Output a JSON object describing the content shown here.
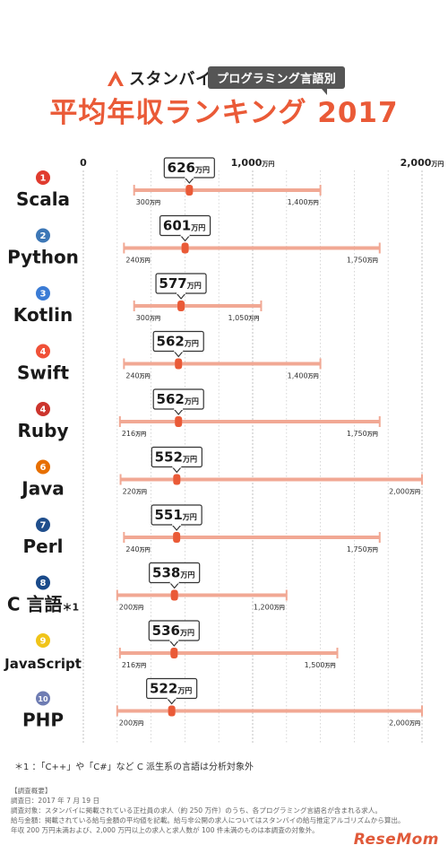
{
  "header": {
    "brand_name": "スタンバイ",
    "subtitle": "プログラミング言語別",
    "title": "平均年収ランキング 2017"
  },
  "colors": {
    "accent": "#ea5a37",
    "range": "#f1a894",
    "grid": "#cccccc"
  },
  "footnote": "＊1 ：「C++」や「C#」など C 派生系の言語は分析対象外",
  "survey": {
    "heading": "【調査概要】",
    "lines": [
      "調査日：2017 年 7 月 19 日",
      "調査対象：スタンバイに掲載されている正社員の求人（約 250 万件）のうち、各プログラミング言語名が含まれる求人。",
      "給与金額：掲載されている給与金額の平均値を記載。給与非公開の求人についてはスタンバイの給与推定アルゴリズムから算出。",
      "年収 200 万円未満および、2,000 万円以上の求人と求人数が 100 件未満のものは本調査の対象外。"
    ]
  },
  "watermark": "ReseMom",
  "chart_data": {
    "type": "range-dot",
    "unit": "万円",
    "axis": {
      "min": 0,
      "max": 2000,
      "ticks": [
        0,
        1000,
        2000
      ],
      "tick_labels": [
        "0",
        "1,000",
        "2,000"
      ],
      "tick_unit": "万円",
      "grid": true
    },
    "rows": [
      {
        "rank": "1",
        "name": "Scala",
        "avg": 626,
        "min": 300,
        "max": 1400,
        "min_label": "300",
        "max_label": "1,400",
        "rank_color": "#e03b2e"
      },
      {
        "rank": "2",
        "name": "Python",
        "avg": 601,
        "min": 240,
        "max": 1750,
        "min_label": "240",
        "max_label": "1,750",
        "rank_color": "#3d77b6"
      },
      {
        "rank": "3",
        "name": "Kotlin",
        "avg": 577,
        "min": 300,
        "max": 1050,
        "min_label": "300",
        "max_label": "1,050",
        "rank_color": "#3a7bd5"
      },
      {
        "rank": "4",
        "name": "Swift",
        "avg": 562,
        "min": 240,
        "max": 1400,
        "min_label": "240",
        "max_label": "1,400",
        "rank_color": "#f05138"
      },
      {
        "rank": "4",
        "name": "Ruby",
        "avg": 562,
        "min": 216,
        "max": 1750,
        "min_label": "216",
        "max_label": "1,750",
        "rank_color": "#cc342d"
      },
      {
        "rank": "6",
        "name": "Java",
        "avg": 552,
        "min": 220,
        "max": 2000,
        "min_label": "220",
        "max_label": "2,000",
        "rank_color": "#e76f00"
      },
      {
        "rank": "7",
        "name": "Perl",
        "avg": 551,
        "min": 240,
        "max": 1750,
        "min_label": "240",
        "max_label": "1,750",
        "rank_color": "#1f4e8c"
      },
      {
        "rank": "8",
        "name": "C 言語",
        "name_suffix": "＊1",
        "avg": 538,
        "min": 200,
        "max": 1200,
        "min_label": "200",
        "max_label": "1,200",
        "rank_color": "#1a4a8a"
      },
      {
        "rank": "9",
        "name": "JavaScript",
        "avg": 536,
        "min": 216,
        "max": 1500,
        "min_label": "216",
        "max_label": "1,500",
        "rank_color": "#f0c419"
      },
      {
        "rank": "10",
        "name": "PHP",
        "avg": 522,
        "min": 200,
        "max": 2000,
        "min_label": "200",
        "max_label": "2,000",
        "rank_color": "#6f7db3"
      }
    ]
  }
}
